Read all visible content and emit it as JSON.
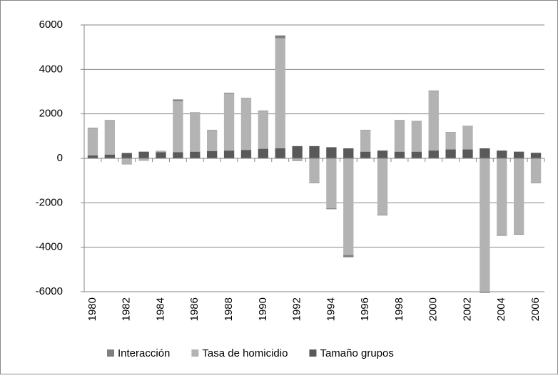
{
  "chart_data": {
    "type": "bar",
    "stacked": true,
    "categories": [
      "1980",
      null,
      "1982",
      null,
      "1984",
      null,
      "1986",
      null,
      "1988",
      null,
      "1990",
      null,
      "1992",
      null,
      "1994",
      null,
      "1996",
      null,
      "1998",
      null,
      "2000",
      null,
      "2002",
      null,
      "2004",
      null,
      "2006"
    ],
    "series": [
      {
        "name": "Interacción",
        "color": "#7f7f7f",
        "values": [
          20,
          20,
          -20,
          -10,
          10,
          70,
          20,
          20,
          30,
          20,
          20,
          130,
          -20,
          -20,
          -40,
          -100,
          20,
          -20,
          20,
          20,
          20,
          20,
          20,
          -50,
          -30,
          -30,
          -20
        ]
      },
      {
        "name": "Tasa de homicidio",
        "color": "#b3b3b3",
        "values": [
          1230,
          1530,
          -250,
          -100,
          50,
          2300,
          1750,
          930,
          2570,
          2320,
          1700,
          4950,
          -100,
          -1100,
          -2250,
          -4350,
          960,
          -2550,
          1400,
          1360,
          2680,
          760,
          1040,
          -6000,
          -3450,
          -3400,
          -1100
        ]
      },
      {
        "name": "Tamaño grupos",
        "color": "#595959",
        "values": [
          130,
          170,
          240,
          300,
          280,
          280,
          300,
          330,
          350,
          380,
          430,
          450,
          550,
          550,
          500,
          450,
          300,
          350,
          300,
          300,
          350,
          400,
          400,
          450,
          350,
          300,
          250
        ]
      }
    ],
    "ylim": [
      -6000,
      6000
    ],
    "yticks": [
      -6000,
      -4000,
      -2000,
      0,
      2000,
      4000,
      6000
    ],
    "grid": true,
    "legend": "bottom"
  }
}
